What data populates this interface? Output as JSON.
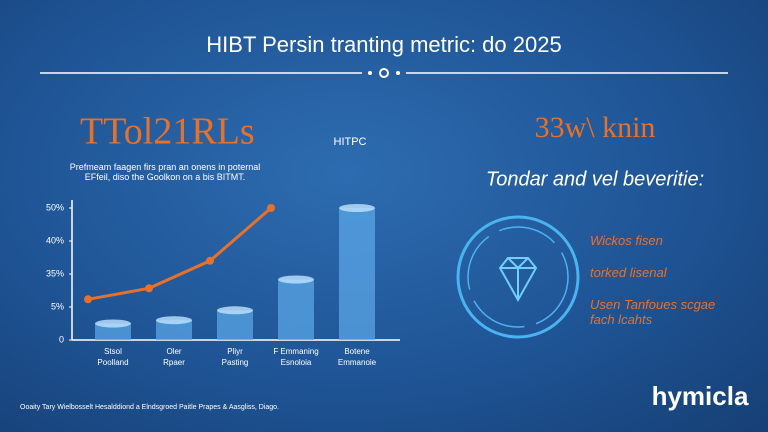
{
  "header": {
    "title": "HIBT Persin tranting metric: do 2025"
  },
  "left_panel": {
    "headline": "TTol21RLs",
    "description": "Prefmeam faagen firs pran an onens in poternal\n EFfeil, diso the Goolkon on a bis BITMT."
  },
  "chart_data": {
    "type": "bar",
    "categories": [
      "Stsol\nPoolland",
      "Oler\nRpaer",
      "Pliyr\nPasting",
      "F Emmaning\nEsnoloia",
      "Botene\nEmmanoie"
    ],
    "series": [
      {
        "name": "bars",
        "type": "bar",
        "color": "#5aa6e6",
        "values": [
          2.5,
          3,
          4.5,
          30,
          50
        ]
      },
      {
        "name": "HITPC",
        "type": "line",
        "color": "#e8712a",
        "values": [
          12,
          22,
          37,
          50,
          null
        ]
      }
    ],
    "ylim": [
      0,
      50
    ],
    "yticks": [
      0,
      {
        "value": 5,
        "label": "5%"
      },
      {
        "value": 35,
        "label": "35%"
      },
      {
        "value": 40,
        "label": "40%"
      },
      {
        "value": 50,
        "label": "50%"
      }
    ]
  },
  "right_panel": {
    "headline": "33w\\ knin",
    "subtitle": "Tondar and vel beveritie:",
    "items": [
      "Wickos fisen",
      "torked lisenal",
      "Usen Tanfoues scgae\nfach lcahts"
    ]
  },
  "footer": {
    "note": "Ooaity Tary Wielbosselt Hesalddiond a Elndsgroed Paitle Prapes & Aasgliss, Diago.",
    "brand": "hymicla"
  }
}
